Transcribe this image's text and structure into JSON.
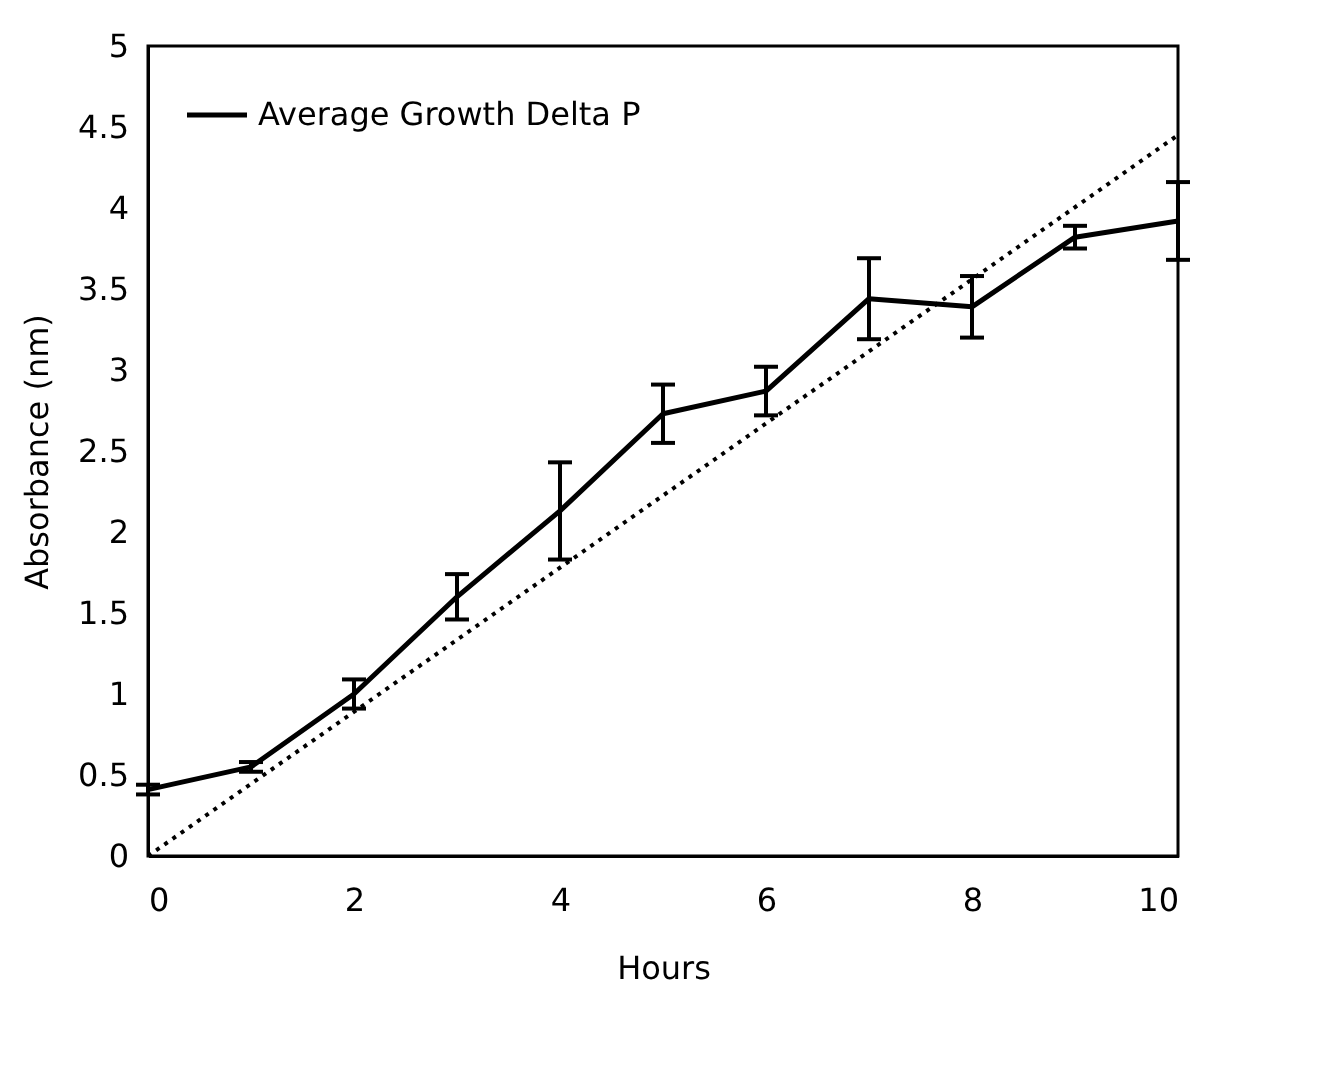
{
  "chart_data": {
    "type": "line",
    "xlabel": "Hours",
    "ylabel": "Absorbance (nm)",
    "x": [
      0,
      1,
      2,
      3,
      4,
      5,
      6,
      7,
      8,
      9,
      10
    ],
    "series": [
      {
        "name": "Average Growth Delta P",
        "color": "#000000",
        "values": [
          0.41,
          0.55,
          1.0,
          1.6,
          2.13,
          2.73,
          2.87,
          3.44,
          3.39,
          3.82,
          3.92
        ],
        "errors": [
          0.03,
          0.03,
          0.09,
          0.14,
          0.3,
          0.18,
          0.15,
          0.25,
          0.19,
          0.07,
          0.24
        ],
        "line_style": "solid"
      },
      {
        "type": "line",
        "color": "#000000",
        "x": [
          0,
          10
        ],
        "values": [
          0,
          4.45
        ],
        "line_style": "dotted"
      }
    ],
    "xlim": [
      0,
      10
    ],
    "xticks": [
      0,
      2,
      4,
      6,
      8,
      10
    ],
    "ylim": [
      0,
      5
    ],
    "yticks": [
      0,
      0.5,
      1,
      1.5,
      2,
      2.5,
      3,
      3.5,
      4,
      4.5,
      5
    ],
    "grid": false,
    "legend": "top left",
    "marker": "none"
  }
}
